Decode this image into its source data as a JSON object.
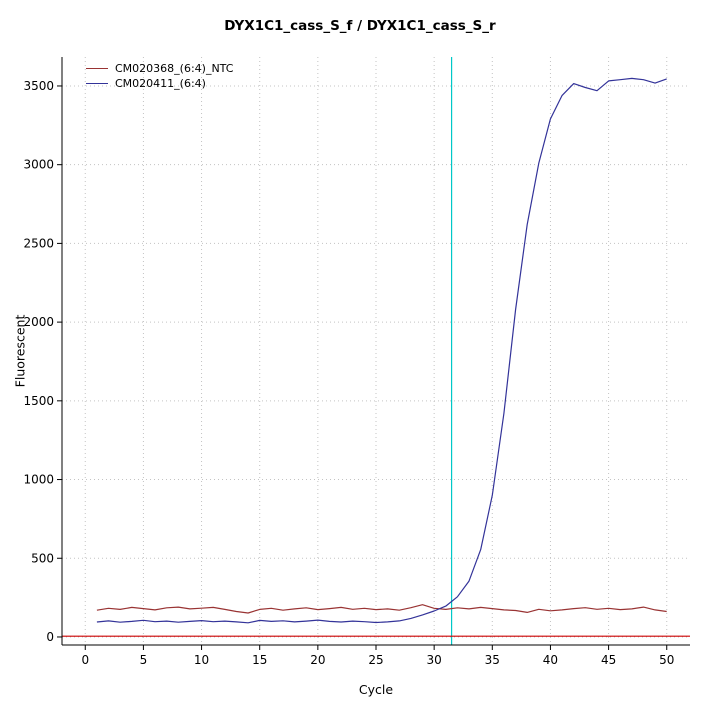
{
  "chart_data": {
    "type": "line",
    "title": "DYX1C1_cass_S_f / DYX1C1_cass_S_r",
    "xlabel": "Cycle",
    "ylabel": "Fluorescent",
    "xlim": [
      -2,
      52
    ],
    "ylim": [
      -51,
      3684
    ],
    "x_ticks": [
      0,
      5,
      10,
      15,
      20,
      25,
      30,
      35,
      40,
      45,
      50
    ],
    "y_ticks": [
      0,
      500,
      1000,
      1500,
      2000,
      2500,
      3000,
      3500
    ],
    "grid": true,
    "grid_color": "#c3c3c3",
    "legend_position": "top-left",
    "cycles": [
      1,
      2,
      3,
      4,
      5,
      6,
      7,
      8,
      9,
      10,
      11,
      12,
      13,
      14,
      15,
      16,
      17,
      18,
      19,
      20,
      21,
      22,
      23,
      24,
      25,
      26,
      27,
      28,
      29,
      30,
      31,
      32,
      33,
      34,
      35,
      36,
      37,
      38,
      39,
      40,
      41,
      42,
      43,
      44,
      45,
      46,
      47,
      48,
      49,
      50
    ],
    "series": [
      {
        "name": "CM020368_(6:4)_NTC",
        "color": "#993333",
        "values": [
          170,
          182,
          175,
          188,
          180,
          172,
          185,
          190,
          178,
          183,
          188,
          175,
          162,
          152,
          175,
          182,
          170,
          178,
          185,
          174,
          180,
          188,
          176,
          182,
          174,
          178,
          170,
          186,
          205,
          182,
          175,
          185,
          178,
          188,
          180,
          172,
          168,
          156,
          176,
          166,
          172,
          180,
          186,
          176,
          182,
          174,
          178,
          190,
          172,
          162
        ]
      },
      {
        "name": "CM020411_(6:4)",
        "color": "#333399",
        "values": [
          95,
          102,
          94,
          99,
          106,
          97,
          101,
          94,
          99,
          104,
          97,
          101,
          96,
          90,
          105,
          99,
          103,
          96,
          101,
          107,
          99,
          95,
          101,
          97,
          92,
          96,
          102,
          118,
          140,
          165,
          196,
          255,
          355,
          555,
          900,
          1420,
          2080,
          2620,
          3010,
          3290,
          3440,
          3515,
          3490,
          3470,
          3532,
          3540,
          3548,
          3540,
          3518,
          3545
        ]
      }
    ],
    "threshold_line": {
      "y": 5,
      "color": "#cc0000"
    },
    "ct_line": {
      "x": 31.5,
      "color": "#00c8c8"
    }
  }
}
